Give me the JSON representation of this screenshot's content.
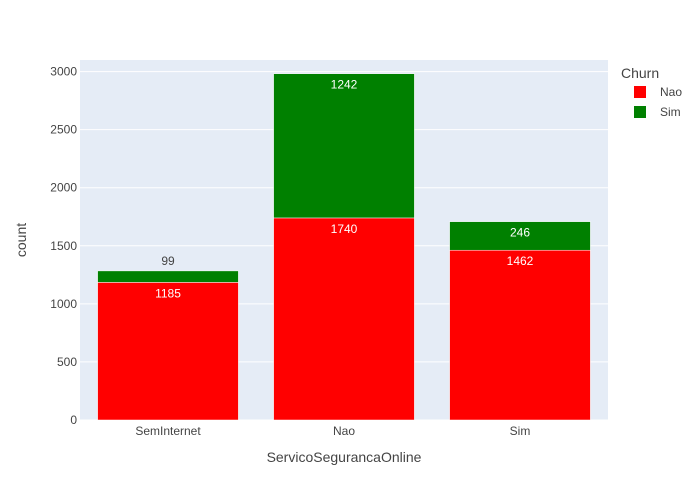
{
  "chart_data": {
    "type": "bar",
    "stacked": true,
    "categories": [
      "SemInternet",
      "Nao",
      "Sim"
    ],
    "series": [
      {
        "name": "Nao",
        "values": [
          1185,
          1740,
          1462
        ],
        "color": "#ff0000"
      },
      {
        "name": "Sim",
        "values": [
          99,
          1242,
          246
        ],
        "color": "#008000"
      }
    ],
    "xlabel": "ServicoSegurancaOnline",
    "ylabel": "count",
    "ylim": [
      0,
      3100
    ],
    "yticks": [
      0,
      500,
      1000,
      1500,
      2000,
      2500,
      3000
    ],
    "legend_title": "Churn",
    "legend_position": "top-right",
    "grid": true,
    "plot_background": "#e5ecf6"
  }
}
